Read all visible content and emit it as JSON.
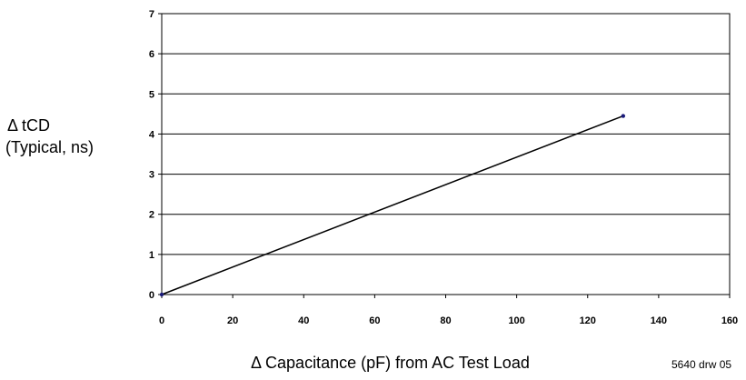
{
  "chart_data": {
    "type": "line",
    "title": "",
    "ylabel_lines": [
      "Δ tCD",
      "(Typical, ns)"
    ],
    "xlabel": "Δ Capacitance (pF) from AC Test Load",
    "xlim": [
      0,
      160
    ],
    "ylim": [
      0,
      7
    ],
    "x_ticks": [
      0,
      20,
      40,
      60,
      80,
      100,
      120,
      140,
      160
    ],
    "y_ticks": [
      0,
      1,
      2,
      3,
      4,
      5,
      6,
      7
    ],
    "grid": "horizontal",
    "legend": "none",
    "series": [
      {
        "x": [
          0,
          130
        ],
        "y": [
          0,
          4.45
        ],
        "color": "#000000",
        "marker_color": "#1a1a7a"
      }
    ]
  },
  "drawing_id": "5640 drw 05"
}
